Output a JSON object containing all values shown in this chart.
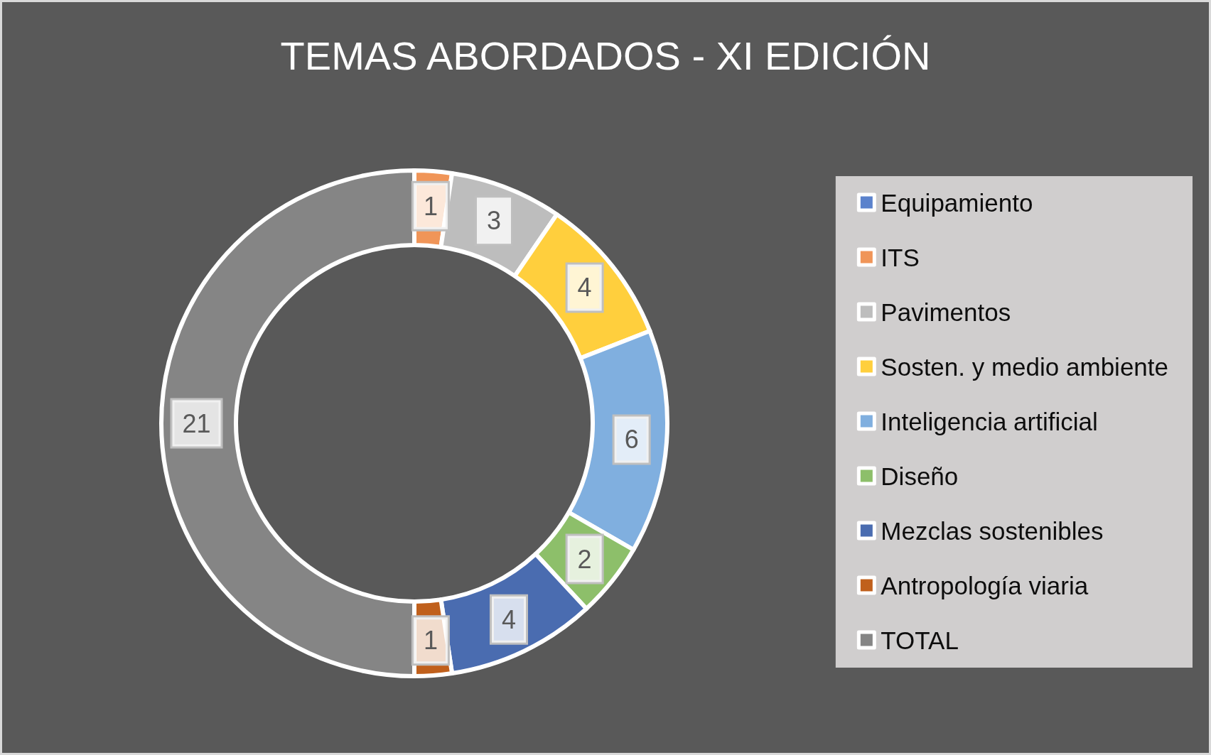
{
  "chart_data": {
    "type": "donut",
    "title": "TEMAS ABORDADOS - XI EDICIÓN",
    "categories": [
      "Equipamiento",
      "ITS",
      "Pavimentos",
      "Sosten. y medio ambiente",
      "Inteligencia artificial",
      "Diseño",
      "Mezclas sostenibles",
      "Antropología viaria",
      "TOTAL"
    ],
    "values": [
      0,
      1,
      3,
      4,
      6,
      2,
      4,
      1,
      21
    ],
    "colors": [
      "#5b82cc",
      "#f09558",
      "#bdbdbd",
      "#ffcf3d",
      "#80afdf",
      "#8dbf6a",
      "#4a6cb0",
      "#c0601c",
      "#858585"
    ],
    "value_labels": [
      null,
      "1",
      "3",
      "4",
      "6",
      "2",
      "4",
      "1",
      "21"
    ],
    "legend": "right"
  }
}
